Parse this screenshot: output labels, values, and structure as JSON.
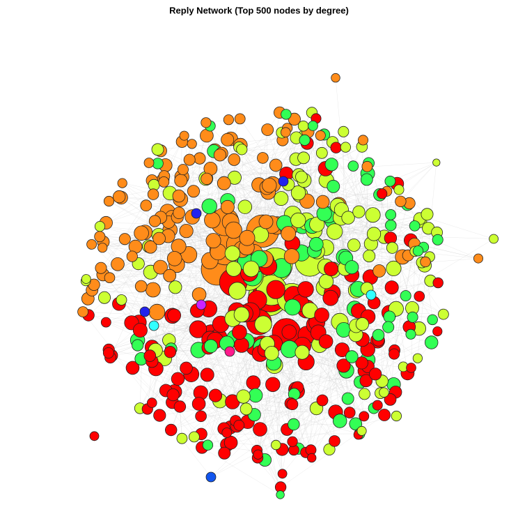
{
  "header": {
    "title": "Reply Network (Top 500 nodes by degree)"
  }
}
